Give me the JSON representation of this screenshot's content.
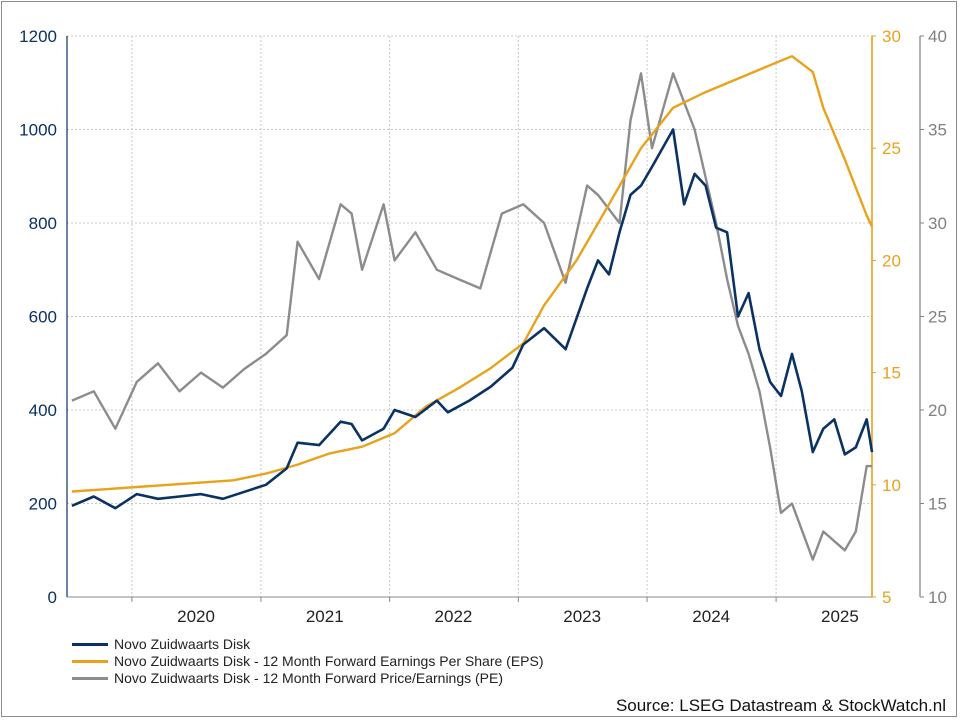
{
  "chart_data": {
    "type": "line",
    "source": "Source: LSEG Datastream & StockWatch.nl",
    "x_tick_labels": [
      "2020",
      "2021",
      "2022",
      "2023",
      "2024",
      "2025"
    ],
    "xlim": [
      "2019-07-01",
      "2025-09-30"
    ],
    "axes": {
      "left": {
        "range": [
          0,
          1200
        ],
        "ticks": [
          0,
          200,
          400,
          600,
          800,
          1000,
          1200
        ],
        "color": "#0a3262"
      },
      "right_inner": {
        "range": [
          5,
          30
        ],
        "ticks": [
          5,
          10,
          15,
          20,
          25,
          30
        ],
        "color": "#e8a21b"
      },
      "right_outer": {
        "range": [
          10,
          40
        ],
        "ticks": [
          10,
          15,
          20,
          25,
          30,
          35,
          40
        ],
        "color": "#808080"
      }
    },
    "grid": true,
    "legend_position": "bottom-left",
    "series": [
      {
        "name": "Novo Zuidwaarts Disk",
        "axis": "left",
        "color": "#0a3262",
        "points": [
          [
            "2019-07",
            195
          ],
          [
            "2019-09",
            215
          ],
          [
            "2019-11",
            190
          ],
          [
            "2020-01",
            220
          ],
          [
            "2020-03",
            210
          ],
          [
            "2020-05",
            215
          ],
          [
            "2020-07",
            220
          ],
          [
            "2020-09",
            210
          ],
          [
            "2020-11",
            225
          ],
          [
            "2021-01",
            240
          ],
          [
            "2021-03",
            275
          ],
          [
            "2021-04",
            330
          ],
          [
            "2021-06",
            325
          ],
          [
            "2021-08",
            375
          ],
          [
            "2021-09",
            370
          ],
          [
            "2021-10",
            335
          ],
          [
            "2021-12",
            360
          ],
          [
            "2022-01",
            400
          ],
          [
            "2022-03",
            385
          ],
          [
            "2022-05",
            420
          ],
          [
            "2022-06",
            395
          ],
          [
            "2022-08",
            420
          ],
          [
            "2022-10",
            450
          ],
          [
            "2022-12",
            490
          ],
          [
            "2023-01",
            540
          ],
          [
            "2023-03",
            575
          ],
          [
            "2023-05",
            530
          ],
          [
            "2023-07",
            660
          ],
          [
            "2023-08",
            720
          ],
          [
            "2023-09",
            690
          ],
          [
            "2023-10",
            780
          ],
          [
            "2023-11",
            860
          ],
          [
            "2023-12",
            880
          ],
          [
            "2024-01",
            920
          ],
          [
            "2024-03",
            1000
          ],
          [
            "2024-04",
            840
          ],
          [
            "2024-05",
            905
          ],
          [
            "2024-06",
            880
          ],
          [
            "2024-07",
            790
          ],
          [
            "2024-08",
            780
          ],
          [
            "2024-09",
            600
          ],
          [
            "2024-10",
            650
          ],
          [
            "2024-11",
            530
          ],
          [
            "2024-12",
            460
          ],
          [
            "2025-01",
            430
          ],
          [
            "2025-02",
            520
          ],
          [
            "2025-03",
            440
          ],
          [
            "2025-04",
            310
          ],
          [
            "2025-05",
            360
          ],
          [
            "2025-06",
            380
          ],
          [
            "2025-07",
            305
          ],
          [
            "2025-08",
            320
          ],
          [
            "2025-09",
            380
          ],
          [
            "2025-09-30",
            310
          ]
        ]
      },
      {
        "name": "Novo Zuidwaarts Disk - 12 Month Forward Earnings Per Share (EPS)",
        "axis": "right_inner",
        "color": "#e8a21b",
        "points": [
          [
            "2019-07",
            9.7
          ],
          [
            "2019-10",
            9.8
          ],
          [
            "2020-01",
            9.9
          ],
          [
            "2020-04",
            10.0
          ],
          [
            "2020-07",
            10.1
          ],
          [
            "2020-10",
            10.2
          ],
          [
            "2021-01",
            10.5
          ],
          [
            "2021-04",
            10.9
          ],
          [
            "2021-07",
            11.4
          ],
          [
            "2021-10",
            11.7
          ],
          [
            "2022-01",
            12.3
          ],
          [
            "2022-04",
            13.5
          ],
          [
            "2022-07",
            14.3
          ],
          [
            "2022-10",
            15.2
          ],
          [
            "2023-01",
            16.3
          ],
          [
            "2023-03",
            18.0
          ],
          [
            "2023-06",
            20.0
          ],
          [
            "2023-09",
            22.5
          ],
          [
            "2023-12",
            25.0
          ],
          [
            "2024-03",
            26.8
          ],
          [
            "2024-06",
            27.5
          ],
          [
            "2024-09",
            28.1
          ],
          [
            "2024-12",
            28.7
          ],
          [
            "2025-02",
            29.1
          ],
          [
            "2025-04",
            28.4
          ],
          [
            "2025-05",
            26.8
          ],
          [
            "2025-07",
            24.5
          ],
          [
            "2025-09",
            22.0
          ],
          [
            "2025-09-30",
            21.5
          ]
        ]
      },
      {
        "name": "Novo Zuidwaarts Disk - 12 Month Forward Price/Earnings (PE)",
        "axis": "right_outer",
        "color": "#8c8c8c",
        "points": [
          [
            "2019-07",
            20.5
          ],
          [
            "2019-09",
            21.0
          ],
          [
            "2019-11",
            19.0
          ],
          [
            "2020-01",
            21.5
          ],
          [
            "2020-03",
            22.5
          ],
          [
            "2020-05",
            21.0
          ],
          [
            "2020-07",
            22.0
          ],
          [
            "2020-09",
            21.2
          ],
          [
            "2020-11",
            22.2
          ],
          [
            "2021-01",
            23.0
          ],
          [
            "2021-03",
            24.0
          ],
          [
            "2021-04",
            29.0
          ],
          [
            "2021-06",
            27.0
          ],
          [
            "2021-08",
            31.0
          ],
          [
            "2021-09",
            30.5
          ],
          [
            "2021-10",
            27.5
          ],
          [
            "2021-12",
            31.0
          ],
          [
            "2022-01",
            28.0
          ],
          [
            "2022-03",
            29.5
          ],
          [
            "2022-05",
            27.5
          ],
          [
            "2022-07",
            27.0
          ],
          [
            "2022-09",
            26.5
          ],
          [
            "2022-11",
            30.5
          ],
          [
            "2023-01",
            31.0
          ],
          [
            "2023-03",
            30.0
          ],
          [
            "2023-05",
            26.8
          ],
          [
            "2023-07",
            32.0
          ],
          [
            "2023-08",
            31.5
          ],
          [
            "2023-10",
            30.0
          ],
          [
            "2023-11",
            35.5
          ],
          [
            "2023-12",
            38.0
          ],
          [
            "2024-01",
            34.0
          ],
          [
            "2024-03",
            38.0
          ],
          [
            "2024-05",
            35.0
          ],
          [
            "2024-07",
            30.0
          ],
          [
            "2024-08",
            27.0
          ],
          [
            "2024-09",
            24.5
          ],
          [
            "2024-10",
            23.0
          ],
          [
            "2024-11",
            21.0
          ],
          [
            "2024-12",
            18.0
          ],
          [
            "2025-01",
            14.5
          ],
          [
            "2025-02",
            15.0
          ],
          [
            "2025-04",
            12.0
          ],
          [
            "2025-05",
            13.5
          ],
          [
            "2025-07",
            12.5
          ],
          [
            "2025-08",
            13.5
          ],
          [
            "2025-09",
            17.0
          ],
          [
            "2025-09-30",
            17.0
          ]
        ]
      }
    ]
  }
}
